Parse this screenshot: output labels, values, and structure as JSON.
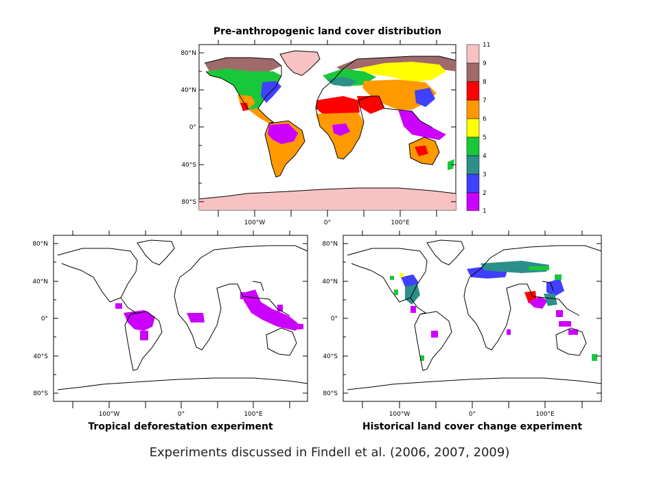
{
  "caption": "Experiments discussed in Findell et al. (2006, 2007, 2009)",
  "maps": [
    {
      "id": "top",
      "title": "Pre-anthropogenic land cover distribution",
      "lat_ticks": [
        "80°N",
        "40°N",
        "0°",
        "40°S",
        "80°S"
      ],
      "lon_ticks": [
        "100°W",
        "0°",
        "100°E"
      ]
    },
    {
      "id": "left",
      "title": "Tropical deforestation experiment",
      "lat_ticks": [
        "80°N",
        "40°N",
        "0°",
        "40°S",
        "80°S"
      ],
      "lon_ticks": [
        "100°W",
        "0°",
        "100°E"
      ]
    },
    {
      "id": "right",
      "title": "Historical land cover change experiment",
      "lat_ticks": [
        "80°N",
        "40°N",
        "0°",
        "40°S",
        "80°S"
      ],
      "lon_ticks": [
        "100°W",
        "0°",
        "100°E"
      ]
    }
  ],
  "legend": {
    "labels": [
      "11",
      "9",
      "8",
      "7",
      "6",
      "5",
      "4",
      "3",
      "2",
      "1"
    ],
    "colors": [
      "#f9c2c2",
      "#a06a6a",
      "#ff0000",
      "#ff9900",
      "#ffff00",
      "#19c83a",
      "#2c8f8a",
      "#4040ff",
      "#cc00ff"
    ]
  },
  "colors": {
    "ice": "#f9c2c2",
    "tundra": "#a06a6a",
    "desert": "#ff0000",
    "savanna": "#ff9900",
    "grass": "#ffff00",
    "mixed": "#19c83a",
    "needle": "#2c8f8a",
    "deciduous": "#4040ff",
    "broadleaf": "#cc00ff"
  }
}
